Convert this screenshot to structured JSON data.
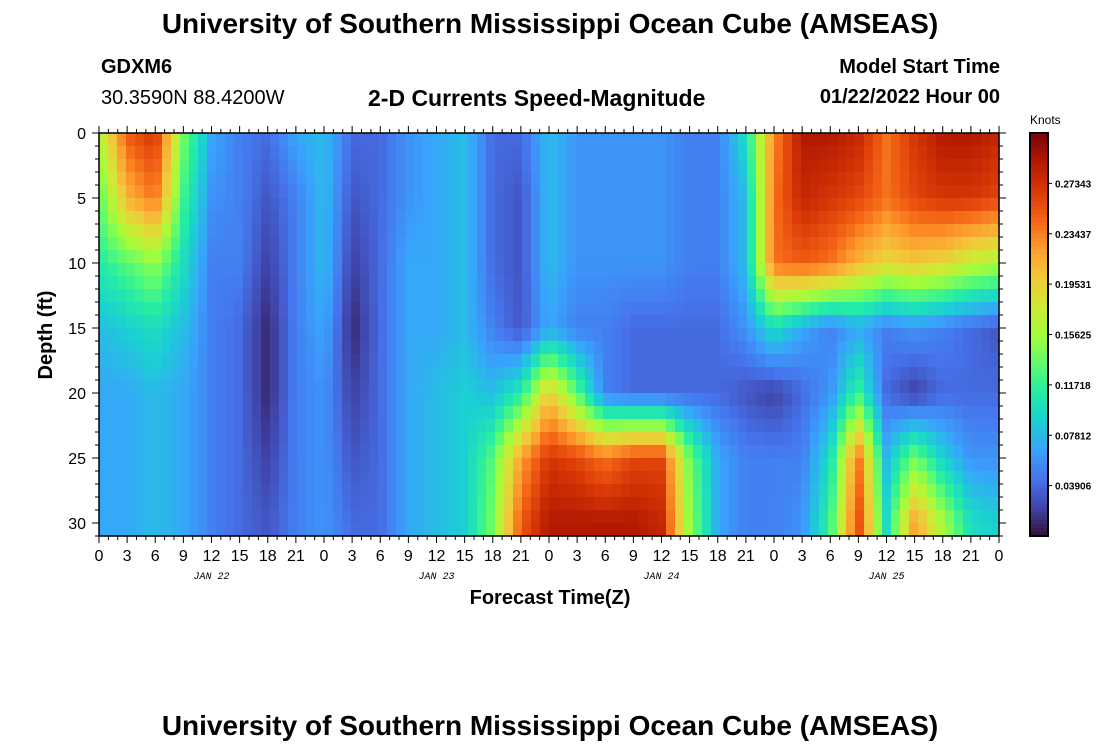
{
  "header": {
    "title": "University of Southern Mississippi Ocean Cube (AMSEAS)",
    "station": "GDXM6",
    "location": "30.3590N  88.4200W",
    "start_label": "Model Start Time",
    "start_value": "01/22/2022 Hour 00"
  },
  "footer": {
    "title": "University of Southern Mississippi Ocean Cube (AMSEAS)"
  },
  "chart_data": {
    "type": "heatmap",
    "title": "2-D Currents Speed-Magnitude",
    "xlabel": "Forecast Time(Z)",
    "ylabel": "Depth (ft)",
    "x_range_hours": [
      0,
      96
    ],
    "x_tick_labels": [
      "0",
      "3",
      "6",
      "9",
      "12",
      "15",
      "18",
      "21",
      "0",
      "3",
      "6",
      "9",
      "12",
      "15",
      "18",
      "21",
      "0",
      "3",
      "6",
      "9",
      "12",
      "15",
      "18",
      "21",
      "0",
      "3",
      "6",
      "9",
      "12",
      "15",
      "18",
      "21",
      "0"
    ],
    "day_labels": [
      {
        "label": "JAN 22",
        "hour": 12
      },
      {
        "label": "JAN 23",
        "hour": 36
      },
      {
        "label": "JAN 24",
        "hour": 60
      },
      {
        "label": "JAN 25",
        "hour": 84
      }
    ],
    "ylim": [
      0,
      31
    ],
    "y_ticks": [
      0,
      5,
      10,
      15,
      20,
      25,
      30
    ],
    "colorbar": {
      "label": "Knots",
      "min": 0.0,
      "max": 0.3125,
      "tick_labels": [
        "0.27343",
        "0.23437",
        "0.19531",
        "0.15625",
        "0.11718",
        "0.07812",
        "0.03906"
      ],
      "tick_values": [
        0.27343,
        0.23437,
        0.19531,
        0.15625,
        0.11718,
        0.07812,
        0.03906
      ],
      "colors": [
        "#30123b",
        "#4145ab",
        "#4675ed",
        "#39a2fc",
        "#1bcfd4",
        "#24eca6",
        "#61fc6c",
        "#a4fc3b",
        "#d1e834",
        "#f3c63a",
        "#fe9b2d",
        "#f36315",
        "#d93806",
        "#b11901",
        "#7a0402"
      ]
    },
    "depth_levels_ft": [
      0,
      5,
      10,
      15,
      20,
      25,
      30
    ],
    "time_hours": [
      0,
      3,
      6,
      9,
      12,
      15,
      18,
      21,
      24,
      27,
      30,
      33,
      36,
      39,
      42,
      45,
      48,
      51,
      54,
      57,
      60,
      63,
      66,
      69,
      72,
      75,
      78,
      81,
      84,
      87,
      90,
      93,
      96
    ],
    "speed_knots": [
      [
        0.16,
        0.25,
        0.27,
        0.14,
        0.07,
        0.05,
        0.04,
        0.07,
        0.08,
        0.04,
        0.04,
        0.06,
        0.07,
        0.08,
        0.04,
        0.04,
        0.08,
        0.06,
        0.06,
        0.06,
        0.06,
        0.05,
        0.05,
        0.1,
        0.23,
        0.29,
        0.29,
        0.28,
        0.24,
        0.27,
        0.29,
        0.29,
        0.28
      ],
      [
        0.13,
        0.21,
        0.24,
        0.12,
        0.06,
        0.05,
        0.03,
        0.05,
        0.08,
        0.03,
        0.04,
        0.06,
        0.07,
        0.08,
        0.04,
        0.03,
        0.08,
        0.06,
        0.06,
        0.06,
        0.06,
        0.05,
        0.05,
        0.08,
        0.24,
        0.28,
        0.27,
        0.26,
        0.24,
        0.26,
        0.27,
        0.27,
        0.26
      ],
      [
        0.11,
        0.13,
        0.15,
        0.1,
        0.05,
        0.05,
        0.02,
        0.05,
        0.08,
        0.02,
        0.04,
        0.07,
        0.07,
        0.08,
        0.04,
        0.03,
        0.08,
        0.06,
        0.06,
        0.06,
        0.06,
        0.05,
        0.05,
        0.08,
        0.24,
        0.25,
        0.24,
        0.21,
        0.19,
        0.2,
        0.19,
        0.17,
        0.16
      ],
      [
        0.08,
        0.09,
        0.1,
        0.08,
        0.05,
        0.04,
        0.01,
        0.05,
        0.07,
        0.01,
        0.04,
        0.07,
        0.07,
        0.08,
        0.05,
        0.03,
        0.07,
        0.05,
        0.05,
        0.04,
        0.04,
        0.04,
        0.04,
        0.06,
        0.1,
        0.07,
        0.05,
        0.07,
        0.05,
        0.06,
        0.05,
        0.04,
        0.03
      ],
      [
        0.07,
        0.07,
        0.08,
        0.07,
        0.05,
        0.04,
        0.01,
        0.05,
        0.06,
        0.02,
        0.04,
        0.07,
        0.08,
        0.09,
        0.08,
        0.11,
        0.2,
        0.13,
        0.05,
        0.04,
        0.04,
        0.04,
        0.04,
        0.03,
        0.02,
        0.04,
        0.06,
        0.12,
        0.04,
        0.02,
        0.04,
        0.04,
        0.04
      ],
      [
        0.07,
        0.07,
        0.08,
        0.07,
        0.05,
        0.04,
        0.02,
        0.05,
        0.06,
        0.03,
        0.04,
        0.07,
        0.08,
        0.09,
        0.13,
        0.22,
        0.27,
        0.26,
        0.24,
        0.26,
        0.26,
        0.14,
        0.07,
        0.05,
        0.05,
        0.05,
        0.1,
        0.24,
        0.08,
        0.14,
        0.09,
        0.06,
        0.06
      ],
      [
        0.07,
        0.07,
        0.08,
        0.07,
        0.05,
        0.04,
        0.03,
        0.05,
        0.06,
        0.04,
        0.04,
        0.07,
        0.08,
        0.09,
        0.14,
        0.25,
        0.29,
        0.29,
        0.29,
        0.29,
        0.28,
        0.15,
        0.07,
        0.05,
        0.05,
        0.06,
        0.12,
        0.26,
        0.1,
        0.22,
        0.16,
        0.1,
        0.09
      ]
    ]
  }
}
